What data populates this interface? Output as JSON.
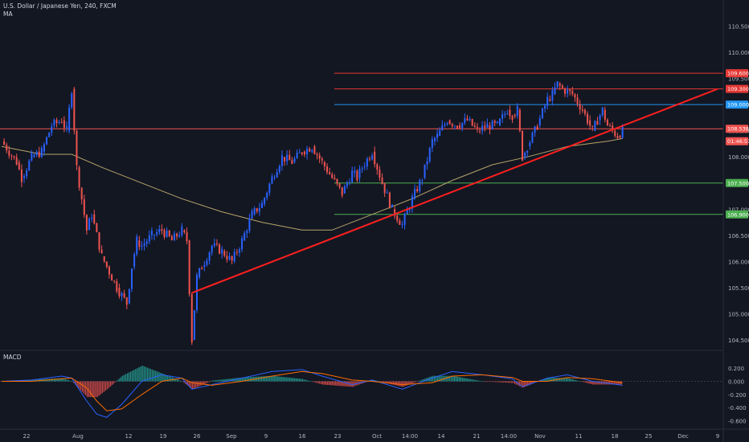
{
  "header": {
    "title": "U.S. Dollar / Japanese Yen, 240, FXCM",
    "ma_label": "MA",
    "macd_label": "MACD"
  },
  "colors": {
    "background": "#131722",
    "up": "#2962ff",
    "down": "#ef5350",
    "ma": "#b5a36a",
    "trendline": "#ff1f1f",
    "resistance": "#e53935",
    "blue_level": "#2196f3",
    "support": "#4caf50",
    "price_tag": "#ef5350",
    "macd_line": "#2962ff",
    "signal_line": "#ff6d00"
  },
  "chart_data": {
    "type": "candlestick",
    "title": "U.S. Dollar / Japanese Yen, 240, FXCM",
    "timeframe": "240",
    "grid": false,
    "y_axis": {
      "range": [
        104.3,
        111.0
      ],
      "ticks": [
        "110.500",
        "110.000",
        "109.500",
        "109.000",
        "108.500",
        "108.000",
        "107.500",
        "107.000",
        "106.500",
        "106.000",
        "105.500",
        "105.000",
        "104.500"
      ],
      "tick_values": [
        110.5,
        110.0,
        109.5,
        109.0,
        108.5,
        108.0,
        107.5,
        107.0,
        106.5,
        106.0,
        105.5,
        105.0,
        104.5
      ]
    },
    "x_axis": {
      "ticks": [
        "22",
        "Aug",
        "12",
        "19",
        "26",
        "Sep",
        "9",
        "16",
        "23",
        "Oct",
        "14:00",
        "14",
        "21",
        "14:00",
        "Nov",
        "11",
        "18",
        "25",
        "Dec",
        "9"
      ]
    },
    "price_tags": [
      {
        "label": "109.600",
        "value": 109.6,
        "color": "#e53935"
      },
      {
        "label": "109.300",
        "value": 109.3,
        "color": "#e53935"
      },
      {
        "label": "109.000",
        "value": 109.0,
        "color": "#2196f3"
      },
      {
        "label": "108.538",
        "value": 108.538,
        "color": "#ef5350"
      },
      {
        "label": "01:46:51",
        "value": 108.3,
        "color": "#ef5350"
      },
      {
        "label": "107.500",
        "value": 107.5,
        "color": "#4caf50"
      },
      {
        "label": "106.900",
        "value": 106.9,
        "color": "#4caf50"
      }
    ],
    "horizontal_levels": [
      {
        "value": 109.6,
        "color": "#e53935"
      },
      {
        "value": 109.3,
        "color": "#e53935"
      },
      {
        "value": 109.0,
        "color": "#2196f3"
      },
      {
        "value": 108.538,
        "color": "#ef5350"
      },
      {
        "value": 107.5,
        "color": "#4caf50"
      },
      {
        "value": 106.9,
        "color": "#4caf50"
      }
    ],
    "price_path": [
      {
        "x": "Jul 19",
        "y": 108.3
      },
      {
        "x": "Jul 22",
        "y": 107.9
      },
      {
        "x": "Jul 23",
        "y": 107.6
      },
      {
        "x": "Jul 25",
        "y": 108.0
      },
      {
        "x": "Jul 27",
        "y": 108.1
      },
      {
        "x": "Jul 29",
        "y": 108.6
      },
      {
        "x": "Jul 31",
        "y": 108.7
      },
      {
        "x": "Aug 1",
        "y": 108.5
      },
      {
        "x": "Aug 2",
        "y": 109.3
      },
      {
        "x": "Aug 3",
        "y": 107.8
      },
      {
        "x": "Aug 5",
        "y": 106.6
      },
      {
        "x": "Aug 6",
        "y": 106.9
      },
      {
        "x": "Aug 8",
        "y": 106.1
      },
      {
        "x": "Aug 9",
        "y": 105.9
      },
      {
        "x": "Aug 11",
        "y": 105.5
      },
      {
        "x": "Aug 13",
        "y": 105.2
      },
      {
        "x": "Aug 14",
        "y": 105.9
      },
      {
        "x": "Aug 15",
        "y": 106.4
      },
      {
        "x": "Aug 16",
        "y": 106.3
      },
      {
        "x": "Aug 18",
        "y": 106.5
      },
      {
        "x": "Aug 20",
        "y": 106.6
      },
      {
        "x": "Aug 22",
        "y": 106.4
      },
      {
        "x": "Aug 24",
        "y": 106.6
      },
      {
        "x": "Aug 25",
        "y": 106.4
      },
      {
        "x": "Aug 26",
        "y": 104.5
      },
      {
        "x": "Aug 27",
        "y": 105.7
      },
      {
        "x": "Aug 28",
        "y": 105.9
      },
      {
        "x": "Aug 30",
        "y": 106.3
      },
      {
        "x": "Sep 1",
        "y": 106.2
      },
      {
        "x": "Sep 3",
        "y": 106.0
      },
      {
        "x": "Sep 5",
        "y": 106.4
      },
      {
        "x": "Sep 7",
        "y": 106.9
      },
      {
        "x": "Sep 9",
        "y": 107.1
      },
      {
        "x": "Sep 11",
        "y": 107.6
      },
      {
        "x": "Sep 13",
        "y": 108.0
      },
      {
        "x": "Sep 15",
        "y": 107.9
      },
      {
        "x": "Sep 17",
        "y": 108.1
      },
      {
        "x": "Sep 19",
        "y": 108.2
      },
      {
        "x": "Sep 21",
        "y": 107.9
      },
      {
        "x": "Sep 23",
        "y": 107.6
      },
      {
        "x": "Sep 25",
        "y": 107.3
      },
      {
        "x": "Sep 27",
        "y": 107.7
      },
      {
        "x": "Sep 28",
        "y": 107.6
      },
      {
        "x": "Sep 29",
        "y": 107.8
      },
      {
        "x": "Oct 1",
        "y": 108.1
      },
      {
        "x": "Oct 3",
        "y": 107.5
      },
      {
        "x": "Oct 5",
        "y": 107.0
      },
      {
        "x": "Oct 7",
        "y": 106.7
      },
      {
        "x": "Oct 9",
        "y": 107.2
      },
      {
        "x": "Oct 11",
        "y": 107.6
      },
      {
        "x": "Oct 13",
        "y": 108.3
      },
      {
        "x": "Oct 14",
        "y": 108.4
      },
      {
        "x": "Oct 16",
        "y": 108.7
      },
      {
        "x": "Oct 18",
        "y": 108.6
      },
      {
        "x": "Oct 20",
        "y": 108.7
      },
      {
        "x": "Oct 22",
        "y": 108.5
      },
      {
        "x": "Oct 24",
        "y": 108.6
      },
      {
        "x": "Oct 26",
        "y": 108.6
      },
      {
        "x": "Oct 28",
        "y": 108.9
      },
      {
        "x": "Oct 29",
        "y": 108.8
      },
      {
        "x": "Oct 30",
        "y": 108.9
      },
      {
        "x": "Oct 31",
        "y": 108.0
      },
      {
        "x": "Nov 1",
        "y": 108.2
      },
      {
        "x": "Nov 3",
        "y": 108.6
      },
      {
        "x": "Nov 5",
        "y": 109.1
      },
      {
        "x": "Nov 6",
        "y": 109.2
      },
      {
        "x": "Nov 7",
        "y": 109.4
      },
      {
        "x": "Nov 8",
        "y": 109.3
      },
      {
        "x": "Nov 10",
        "y": 109.2
      },
      {
        "x": "Nov 12",
        "y": 108.9
      },
      {
        "x": "Nov 13",
        "y": 108.7
      },
      {
        "x": "Nov 14",
        "y": 108.5
      },
      {
        "x": "Nov 15",
        "y": 108.7
      },
      {
        "x": "Nov 16",
        "y": 108.9
      },
      {
        "x": "Nov 17",
        "y": 108.6
      },
      {
        "x": "Nov 18",
        "y": 108.5
      },
      {
        "x": "Nov 19",
        "y": 108.4
      },
      {
        "x": "Nov 20",
        "y": 108.5
      }
    ],
    "moving_average": [
      {
        "x": "Jul 19",
        "y": 108.2
      },
      {
        "x": "Jul 27",
        "y": 108.05
      },
      {
        "x": "Aug 2",
        "y": 108.05
      },
      {
        "x": "Aug 8",
        "y": 107.8
      },
      {
        "x": "Aug 16",
        "y": 107.5
      },
      {
        "x": "Aug 24",
        "y": 107.2
      },
      {
        "x": "Sep 1",
        "y": 106.95
      },
      {
        "x": "Sep 9",
        "y": 106.75
      },
      {
        "x": "Sep 17",
        "y": 106.6
      },
      {
        "x": "Sep 23",
        "y": 106.6
      },
      {
        "x": "Oct 1",
        "y": 106.9
      },
      {
        "x": "Oct 9",
        "y": 107.2
      },
      {
        "x": "Oct 17",
        "y": 107.55
      },
      {
        "x": "Oct 25",
        "y": 107.85
      },
      {
        "x": "Nov 1",
        "y": 108.0
      },
      {
        "x": "Nov 9",
        "y": 108.2
      },
      {
        "x": "Nov 17",
        "y": 108.3
      },
      {
        "x": "Nov 20",
        "y": 108.35
      }
    ],
    "trendline": {
      "from": {
        "x": "Aug 26",
        "y": 105.4
      },
      "to": {
        "x": "Dec 9",
        "y": 109.3
      }
    },
    "macd": {
      "name": "MACD",
      "y_ticks": [
        "0.200",
        "0.000",
        "-0.200",
        "-0.400",
        "-0.600"
      ],
      "y_tick_values": [
        0.2,
        0.0,
        -0.2,
        -0.4,
        -0.6
      ],
      "range": [
        -0.68,
        0.35
      ],
      "series": [
        {
          "x": "Jul 19",
          "macd": 0.0,
          "signal": 0.0
        },
        {
          "x": "Jul 25",
          "macd": 0.02,
          "signal": 0.0
        },
        {
          "x": "Jul 31",
          "macd": 0.08,
          "signal": 0.04
        },
        {
          "x": "Aug 2",
          "macd": 0.05,
          "signal": 0.05
        },
        {
          "x": "Aug 5",
          "macd": -0.3,
          "signal": -0.1
        },
        {
          "x": "Aug 7",
          "macd": -0.5,
          "signal": -0.3
        },
        {
          "x": "Aug 9",
          "macd": -0.55,
          "signal": -0.45
        },
        {
          "x": "Aug 12",
          "macd": -0.35,
          "signal": -0.42
        },
        {
          "x": "Aug 16",
          "macd": 0.0,
          "signal": -0.2
        },
        {
          "x": "Aug 20",
          "macd": 0.1,
          "signal": 0.0
        },
        {
          "x": "Aug 24",
          "macd": 0.05,
          "signal": 0.05
        },
        {
          "x": "Aug 26",
          "macd": -0.12,
          "signal": -0.02
        },
        {
          "x": "Aug 30",
          "macd": -0.05,
          "signal": -0.06
        },
        {
          "x": "Sep 5",
          "macd": 0.05,
          "signal": 0.0
        },
        {
          "x": "Sep 11",
          "macd": 0.15,
          "signal": 0.08
        },
        {
          "x": "Sep 17",
          "macd": 0.18,
          "signal": 0.15
        },
        {
          "x": "Sep 21",
          "macd": 0.08,
          "signal": 0.12
        },
        {
          "x": "Sep 27",
          "macd": -0.05,
          "signal": 0.02
        },
        {
          "x": "Oct 1",
          "macd": 0.02,
          "signal": 0.0
        },
        {
          "x": "Oct 7",
          "macd": -0.12,
          "signal": -0.05
        },
        {
          "x": "Oct 13",
          "macd": 0.05,
          "signal": -0.02
        },
        {
          "x": "Oct 17",
          "macd": 0.15,
          "signal": 0.08
        },
        {
          "x": "Oct 23",
          "macd": 0.1,
          "signal": 0.1
        },
        {
          "x": "Oct 29",
          "macd": 0.04,
          "signal": 0.06
        },
        {
          "x": "Oct 31",
          "macd": -0.08,
          "signal": 0.0
        },
        {
          "x": "Nov 5",
          "macd": 0.05,
          "signal": 0.0
        },
        {
          "x": "Nov 9",
          "macd": 0.1,
          "signal": 0.06
        },
        {
          "x": "Nov 14",
          "macd": 0.0,
          "signal": 0.04
        },
        {
          "x": "Nov 18",
          "macd": -0.04,
          "signal": 0.0
        },
        {
          "x": "Nov 20",
          "macd": -0.06,
          "signal": -0.02
        }
      ]
    },
    "dates": {
      "Jul 19": 0,
      "Jul 22": 3,
      "Jul 23": 4,
      "Jul 25": 6,
      "Jul 27": 8,
      "Jul 29": 10,
      "Jul 31": 12,
      "Aug 1": 13,
      "Aug 2": 14,
      "Aug 3": 15,
      "Aug 5": 17,
      "Aug 6": 18,
      "Aug 7": 19,
      "Aug 8": 20,
      "Aug 9": 21,
      "Aug 11": 23,
      "Aug 12": 24,
      "Aug 13": 25,
      "Aug 14": 26,
      "Aug 15": 27,
      "Aug 16": 28,
      "Aug 18": 30,
      "Aug 20": 32,
      "Aug 22": 34,
      "Aug 24": 36,
      "Aug 25": 37,
      "Aug 26": 38,
      "Aug 27": 39,
      "Aug 28": 40,
      "Aug 30": 42,
      "Sep 1": 44,
      "Sep 3": 46,
      "Sep 5": 48,
      "Sep 7": 50,
      "Sep 9": 52,
      "Sep 11": 54,
      "Sep 13": 56,
      "Sep 15": 58,
      "Sep 17": 60,
      "Sep 19": 62,
      "Sep 21": 64,
      "Sep 23": 66,
      "Sep 25": 68,
      "Sep 27": 70,
      "Sep 28": 71,
      "Sep 29": 72,
      "Oct 1": 74,
      "Oct 3": 76,
      "Oct 5": 78,
      "Oct 7": 80,
      "Oct 9": 82,
      "Oct 11": 84,
      "Oct 13": 86,
      "Oct 14": 87,
      "Oct 16": 89,
      "Oct 17": 90,
      "Oct 18": 91,
      "Oct 20": 93,
      "Oct 22": 95,
      "Oct 23": 96,
      "Oct 24": 97,
      "Oct 25": 98,
      "Oct 26": 99,
      "Oct 28": 101,
      "Oct 29": 102,
      "Oct 30": 103,
      "Oct 31": 104,
      "Nov 1": 105,
      "Nov 3": 107,
      "Nov 5": 109,
      "Nov 6": 110,
      "Nov 7": 111,
      "Nov 8": 112,
      "Nov 9": 113,
      "Nov 10": 114,
      "Nov 12": 116,
      "Nov 13": 117,
      "Nov 14": 118,
      "Nov 15": 119,
      "Nov 16": 120,
      "Nov 17": 121,
      "Nov 18": 122,
      "Nov 19": 123,
      "Nov 20": 124,
      "Dec 9": 143
    }
  }
}
